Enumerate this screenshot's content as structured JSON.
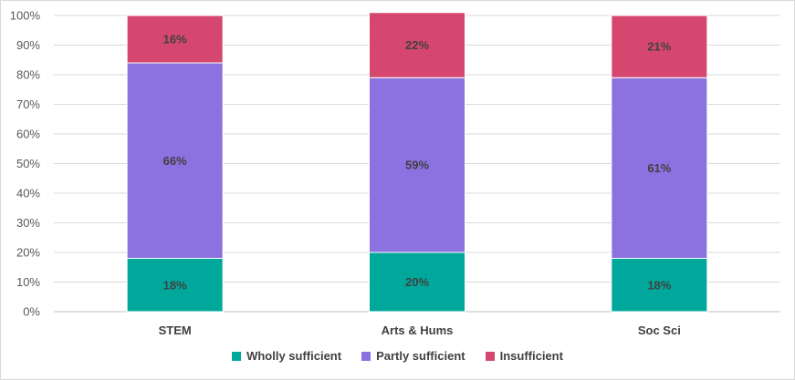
{
  "chart_data": {
    "type": "bar",
    "stacked": true,
    "categories": [
      "STEM",
      "Arts & Hums",
      "Soc Sci"
    ],
    "series": [
      {
        "name": "Wholly sufficient",
        "color": "#00a89c",
        "values": [
          18,
          20,
          18
        ],
        "labels": [
          "18%",
          "20%",
          "18%"
        ]
      },
      {
        "name": "Partly sufficient",
        "color": "#8b72e0",
        "values": [
          66,
          59,
          61
        ],
        "labels": [
          "66%",
          "59%",
          "61%"
        ]
      },
      {
        "name": "Insufficient",
        "color": "#d6476f",
        "values": [
          16,
          22,
          21
        ],
        "labels": [
          "16%",
          "22%",
          "21%"
        ]
      }
    ],
    "ylim": [
      0,
      100
    ],
    "yticks": [
      0,
      10,
      20,
      30,
      40,
      50,
      60,
      70,
      80,
      90,
      100
    ],
    "ytick_labels": [
      "0%",
      "10%",
      "20%",
      "30%",
      "40%",
      "50%",
      "60%",
      "70%",
      "80%",
      "90%",
      "100%"
    ],
    "grid": true,
    "legend_position": "bottom",
    "title": "",
    "xlabel": "",
    "ylabel": ""
  }
}
